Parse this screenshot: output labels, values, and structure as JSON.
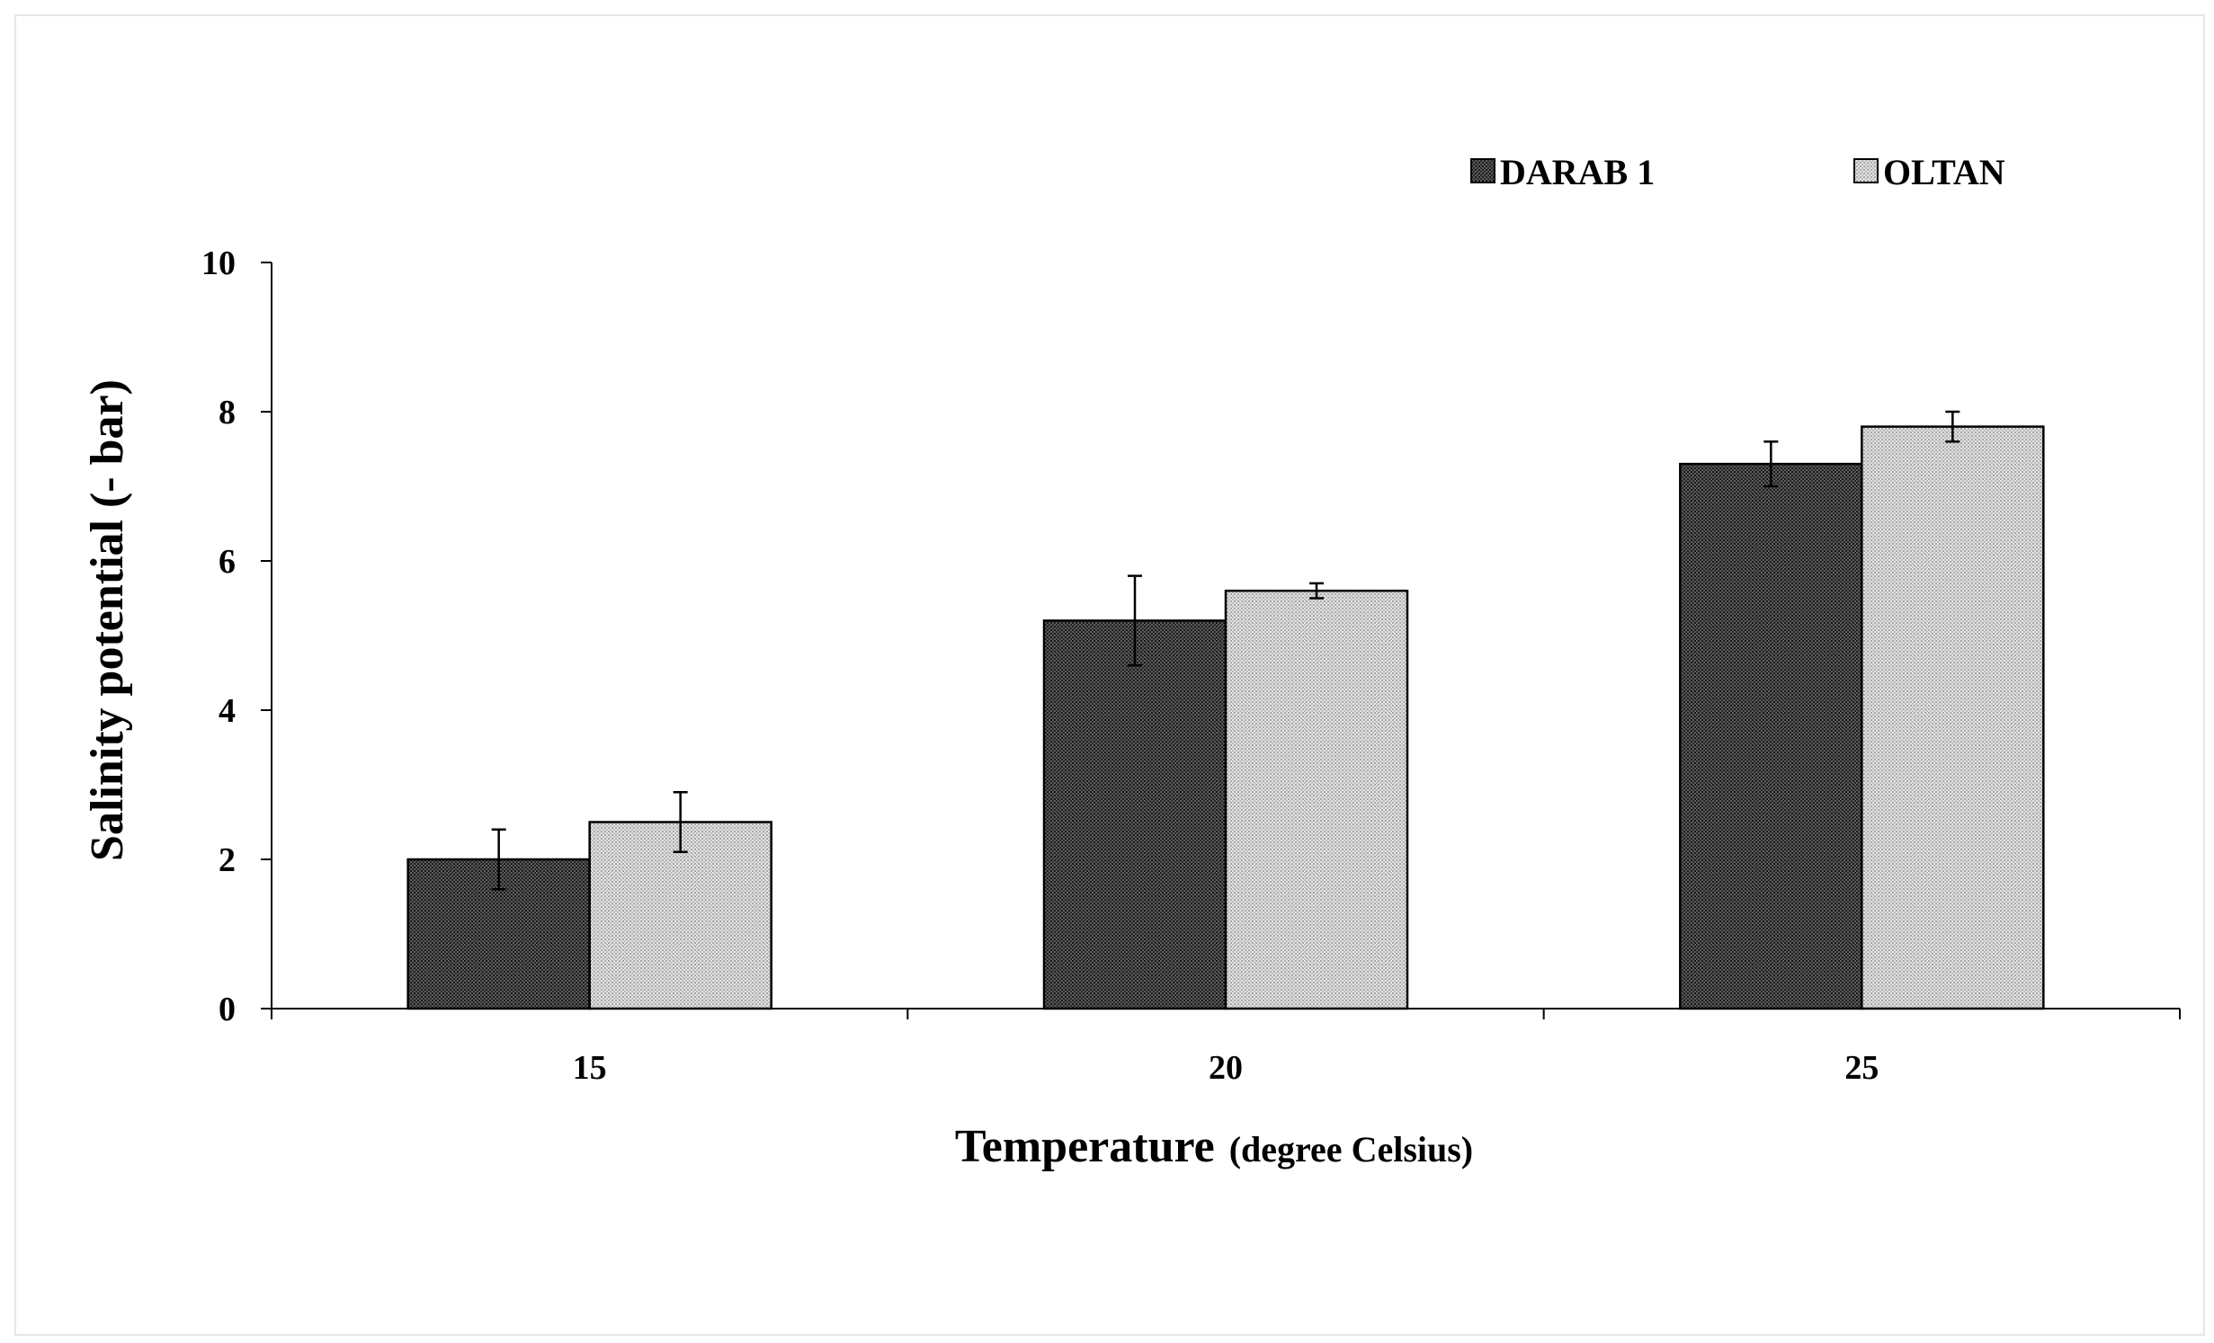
{
  "chart_data": {
    "type": "bar",
    "title": "",
    "xlabel_main": "Temperature",
    "xlabel_sub": "(degree Celsius)",
    "ylabel": "Salinity potential  (- bar)",
    "categories": [
      "15",
      "20",
      "25"
    ],
    "ylim": [
      0,
      10
    ],
    "yticks": [
      0,
      2,
      4,
      6,
      8,
      10
    ],
    "grid": false,
    "legend_position": "top-right",
    "series": [
      {
        "name": "DARAB 1",
        "values": [
          2.0,
          5.2,
          7.3
        ],
        "errors": [
          0.4,
          0.6,
          0.3
        ],
        "color": "#3a3a3a"
      },
      {
        "name": "OLTAN",
        "values": [
          2.5,
          5.6,
          7.8
        ],
        "errors": [
          0.4,
          0.1,
          0.2
        ],
        "color": "#c8c8c8"
      }
    ]
  }
}
